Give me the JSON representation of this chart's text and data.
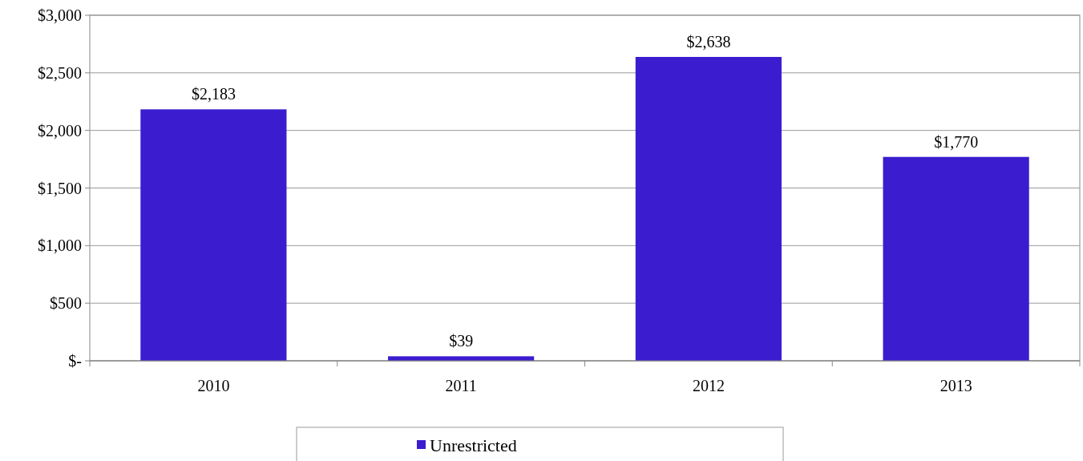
{
  "chart_data": {
    "type": "bar",
    "categories": [
      "2010",
      "2011",
      "2012",
      "2013"
    ],
    "series": [
      {
        "name": "Unrestricted",
        "color": "#3b1ccf",
        "values": [
          2183,
          39,
          2638,
          1770
        ],
        "value_labels": [
          "$2,183",
          "$39",
          "$2,638",
          "$1,770"
        ]
      }
    ],
    "ylim": [
      0,
      3000
    ],
    "yticks": [
      {
        "value": 0,
        "label": "$-"
      },
      {
        "value": 500,
        "label": "$500"
      },
      {
        "value": 1000,
        "label": "$1,000"
      },
      {
        "value": 1500,
        "label": "$1,500"
      },
      {
        "value": 2000,
        "label": "$2,000"
      },
      {
        "value": 2500,
        "label": "$2,500"
      },
      {
        "value": 3000,
        "label": "$3,000"
      }
    ],
    "grid": "y",
    "legend": "bottom"
  }
}
